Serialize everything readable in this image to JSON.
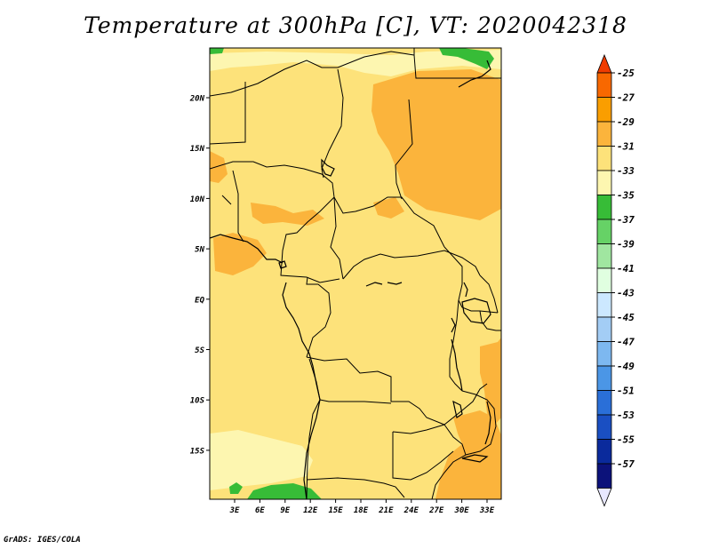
{
  "title": "Temperature at 300hPa [C], VT: 2020042318",
  "credit": "GrADS: IGES/COLA",
  "map": {
    "lat_labels": [
      "20N",
      "15N",
      "10N",
      "5N",
      "EQ",
      "5S",
      "10S",
      "15S"
    ],
    "lon_labels": [
      "3E",
      "6E",
      "9E",
      "12E",
      "15E",
      "18E",
      "21E",
      "24E",
      "27E",
      "30E",
      "33E"
    ],
    "base_color": "#fde27a"
  },
  "colorbar": {
    "labels": [
      "-25",
      "-27",
      "-29",
      "-31",
      "-33",
      "-35",
      "-37",
      "-39",
      "-41",
      "-43",
      "-45",
      "-47",
      "-49",
      "-51",
      "-53",
      "-55",
      "-57"
    ],
    "colors": [
      "#f03c00",
      "#f86800",
      "#fa9e00",
      "#fbb43c",
      "#fde27a",
      "#fdf6b0",
      "#37bc37",
      "#66d266",
      "#a0e6a0",
      "#e0ffe0",
      "#cce8ff",
      "#a3cdf5",
      "#7db8f0",
      "#4b96e6",
      "#2a6fd8",
      "#1a4fc2",
      "#0a2a9c",
      "#0c127a",
      "#e8e8ff"
    ]
  }
}
